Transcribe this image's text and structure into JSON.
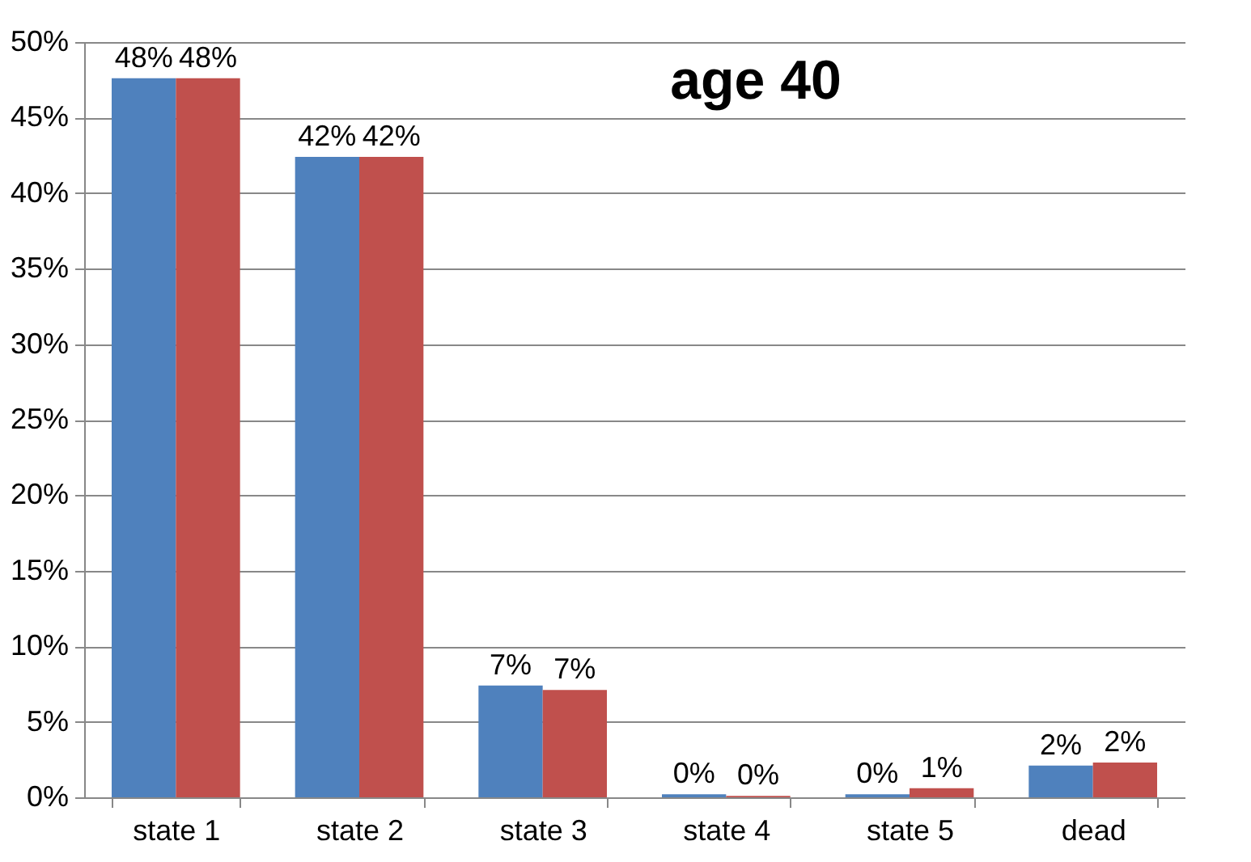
{
  "chart_data": {
    "type": "bar",
    "title": "age 40",
    "categories": [
      "state 1",
      "state 2",
      "state 3",
      "state 4",
      "state 5",
      "dead"
    ],
    "series": [
      {
        "color": "#4f81bd",
        "values": [
          47.6,
          42.4,
          7.4,
          0.2,
          0.2,
          2.1
        ],
        "value_labels": [
          "48%",
          "42%",
          "7%",
          "0%",
          "0%",
          "2%"
        ]
      },
      {
        "color": "#c0504d",
        "values": [
          47.6,
          42.4,
          7.1,
          0.1,
          0.6,
          2.3
        ],
        "value_labels": [
          "48%",
          "42%",
          "7%",
          "0%",
          "1%",
          "2%"
        ]
      }
    ],
    "ylim": [
      0,
      50
    ],
    "yticks": [
      {
        "value": 0,
        "label": "0%"
      },
      {
        "value": 5,
        "label": "5%"
      },
      {
        "value": 10,
        "label": "10%"
      },
      {
        "value": 15,
        "label": "15%"
      },
      {
        "value": 20,
        "label": "20%"
      },
      {
        "value": 25,
        "label": "25%"
      },
      {
        "value": 30,
        "label": "30%"
      },
      {
        "value": 35,
        "label": "35%"
      },
      {
        "value": 40,
        "label": "40%"
      },
      {
        "value": 45,
        "label": "45%"
      },
      {
        "value": 50,
        "label": "50%"
      }
    ],
    "grid": "y",
    "legend": false
  }
}
